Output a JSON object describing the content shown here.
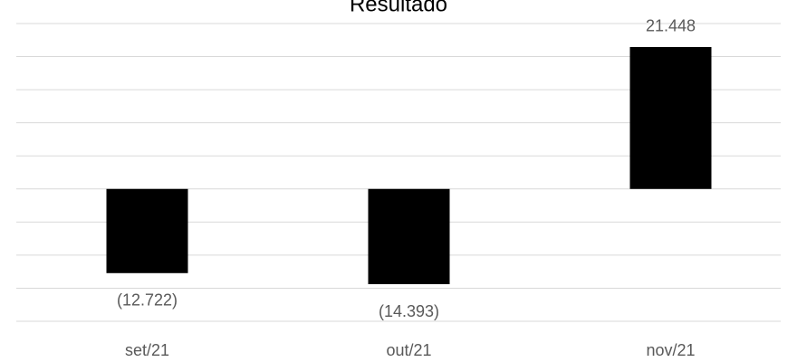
{
  "chart_data": {
    "type": "bar",
    "title": "Resultado",
    "categories": [
      "set/21",
      "out/21",
      "nov/21"
    ],
    "values": [
      -12722,
      -14393,
      21448
    ],
    "value_labels": [
      "(12.722)",
      "(14.393)",
      "21.448"
    ],
    "color": "#000000",
    "ylim": [
      -20000,
      25000
    ],
    "yticks": [
      -20000,
      -15000,
      -10000,
      -5000,
      0,
      5000,
      10000,
      15000,
      20000,
      25000
    ],
    "grid": true
  }
}
